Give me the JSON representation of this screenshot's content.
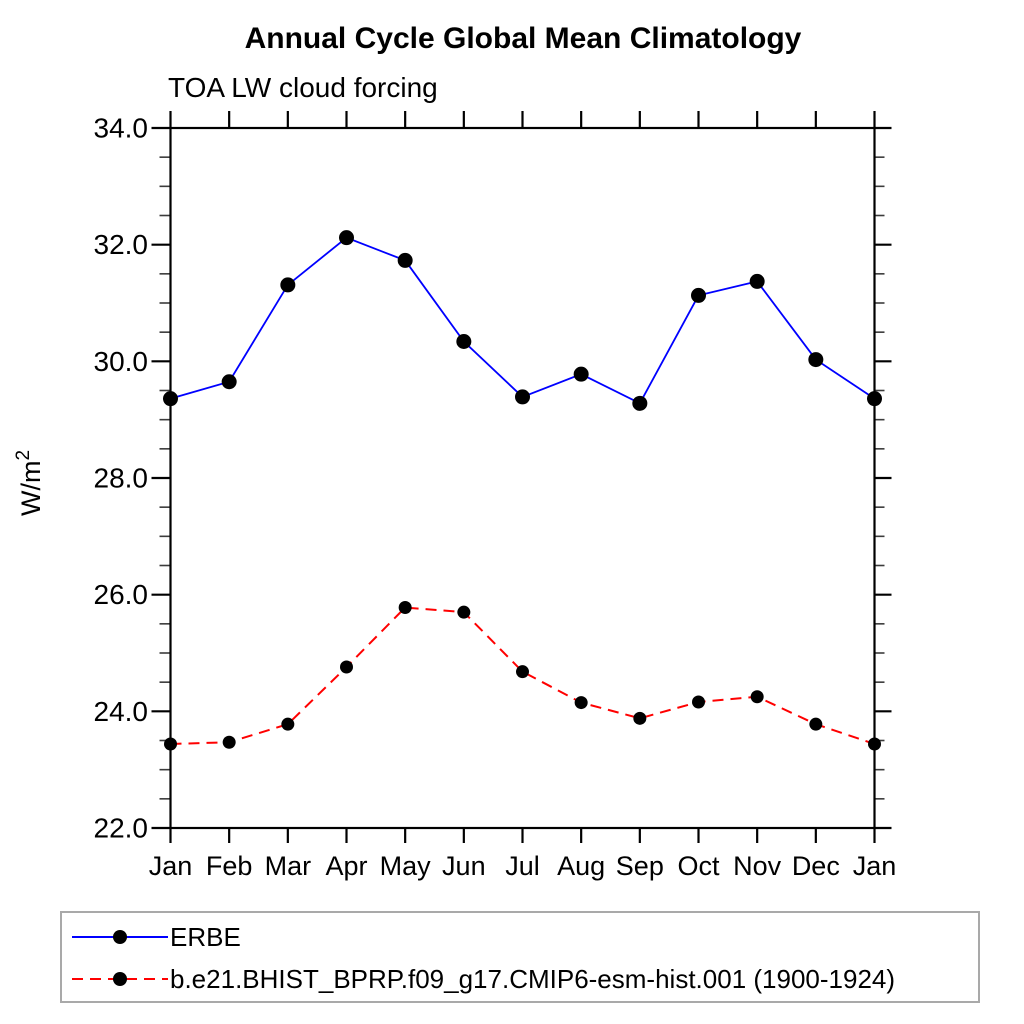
{
  "title": "Annual Cycle Global Mean Climatology",
  "subtitle": "TOA LW cloud forcing",
  "chart_data": {
    "type": "line",
    "title": "Annual Cycle Global Mean Climatology",
    "subtitle": "TOA LW cloud forcing",
    "x_categories": [
      "Jan",
      "Feb",
      "Mar",
      "Apr",
      "May",
      "Jun",
      "Jul",
      "Aug",
      "Sep",
      "Oct",
      "Nov",
      "Dec",
      "Jan"
    ],
    "ylabel": "W/m²",
    "ylabel_base": "W/m",
    "ylabel_sup": "2",
    "ylim": [
      22.0,
      34.0
    ],
    "ytick_major_step": 2.0,
    "ytick_minor_step": 0.5,
    "ytick_labels": [
      "22.0",
      "24.0",
      "26.0",
      "28.0",
      "30.0",
      "32.0",
      "34.0"
    ],
    "grid": false,
    "legend_position": "bottom-left-box",
    "series": [
      {
        "name": "ERBE",
        "color": "#0000ff",
        "line_style": "solid",
        "marker": "filled-circle",
        "marker_color": "#000000",
        "values": [
          29.36,
          29.65,
          31.31,
          32.12,
          31.73,
          30.34,
          29.39,
          29.78,
          29.28,
          31.13,
          31.37,
          30.03,
          29.36
        ]
      },
      {
        "name": "b.e21.BHIST_BPRP.f09_g17.CMIP6-esm-hist.001 (1900-1924)",
        "color": "#ff0000",
        "line_style": "dashed",
        "marker": "filled-circle",
        "marker_color": "#000000",
        "values": [
          23.44,
          23.47,
          23.78,
          24.76,
          25.78,
          25.7,
          24.68,
          24.15,
          23.88,
          24.16,
          24.25,
          23.78,
          23.44
        ]
      }
    ]
  }
}
